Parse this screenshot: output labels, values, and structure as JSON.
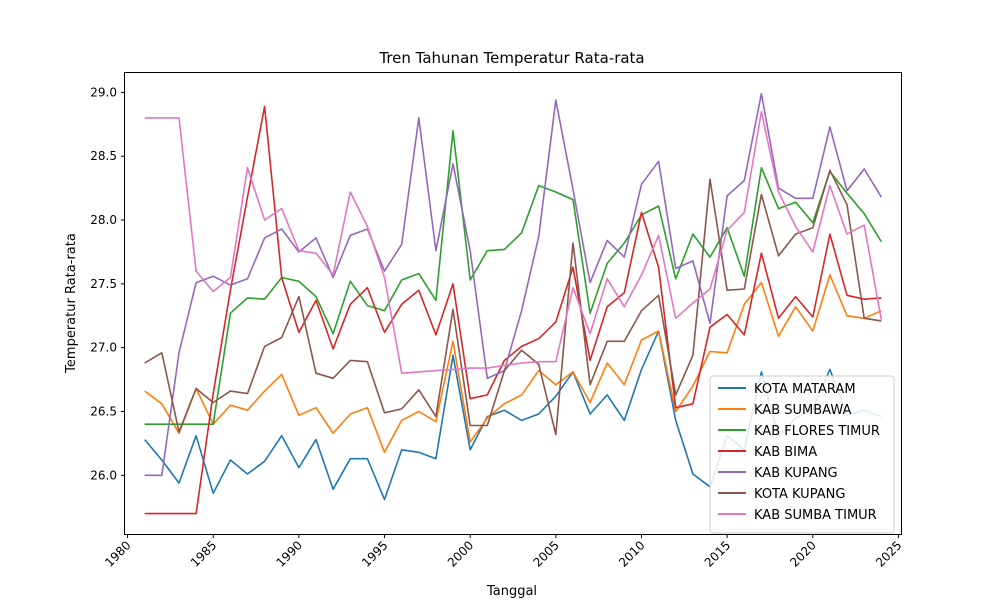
{
  "chart_data": {
    "type": "line",
    "title": "Tren Tahunan Temperatur Rata-rata",
    "xlabel": "Tanggal",
    "ylabel": "Temperatur Rata-rata",
    "xlim": [
      1979.85,
      2025.15
    ],
    "ylim": [
      25.54,
      29.16
    ],
    "xticks": [
      1980,
      1985,
      1990,
      1995,
      2000,
      2005,
      2010,
      2015,
      2020,
      2025
    ],
    "yticks": [
      26.0,
      26.5,
      27.0,
      27.5,
      28.0,
      28.5,
      29.0
    ],
    "grid": false,
    "legend_position": "lower-right",
    "x": [
      1981,
      1982,
      1983,
      1984,
      1985,
      1986,
      1987,
      1988,
      1989,
      1990,
      1991,
      1992,
      1993,
      1994,
      1995,
      1996,
      1997,
      1998,
      1999,
      2000,
      2001,
      2002,
      2003,
      2004,
      2005,
      2006,
      2007,
      2008,
      2009,
      2010,
      2011,
      2012,
      2013,
      2014,
      2015,
      2016,
      2017,
      2018,
      2019,
      2020,
      2021,
      2022,
      2023,
      2024
    ],
    "series": [
      {
        "name": "KOTA MATARAM",
        "color": "#1f77b4",
        "values": [
          26.28,
          26.12,
          25.94,
          26.31,
          25.86,
          26.12,
          26.01,
          26.11,
          26.31,
          26.06,
          26.28,
          25.89,
          26.13,
          26.13,
          25.81,
          26.2,
          26.18,
          26.13,
          26.94,
          26.2,
          26.46,
          26.51,
          26.43,
          26.48,
          26.62,
          26.81,
          26.48,
          26.63,
          26.43,
          26.83,
          27.13,
          26.43,
          26.01,
          25.91,
          26.31,
          26.2,
          26.81,
          26.3,
          26.45,
          26.52,
          26.83,
          26.47,
          26.51,
          26.46
        ]
      },
      {
        "name": "KAB SUMBAWA",
        "color": "#ff7f0e",
        "values": [
          26.66,
          26.56,
          26.33,
          26.68,
          26.4,
          26.55,
          26.51,
          26.66,
          26.79,
          26.47,
          26.53,
          26.33,
          26.48,
          26.53,
          26.18,
          26.43,
          26.5,
          26.42,
          27.05,
          26.26,
          26.45,
          26.56,
          26.63,
          26.82,
          26.71,
          26.81,
          26.57,
          26.88,
          26.71,
          27.06,
          27.13,
          26.5,
          26.7,
          26.97,
          26.96,
          27.34,
          27.51,
          27.09,
          27.32,
          27.13,
          27.57,
          27.25,
          27.23,
          27.29
        ]
      },
      {
        "name": "KAB FLORES TIMUR",
        "color": "#2ca02c",
        "values": [
          26.4,
          26.4,
          26.4,
          26.4,
          26.4,
          27.27,
          27.39,
          27.38,
          27.55,
          27.52,
          27.4,
          27.11,
          27.52,
          27.33,
          27.29,
          27.53,
          27.58,
          27.37,
          28.7,
          27.53,
          27.76,
          27.77,
          27.9,
          28.27,
          28.22,
          28.16,
          27.27,
          27.66,
          27.82,
          28.04,
          28.11,
          27.54,
          27.89,
          27.71,
          27.94,
          27.56,
          28.41,
          28.09,
          28.14,
          27.98,
          28.38,
          28.21,
          28.05,
          27.83
        ]
      },
      {
        "name": "KAB BIMA",
        "color": "#d62728",
        "values": [
          25.7,
          25.7,
          25.7,
          25.7,
          26.64,
          27.45,
          28.18,
          28.89,
          27.55,
          27.12,
          27.37,
          26.99,
          27.34,
          27.47,
          27.12,
          27.34,
          27.45,
          27.1,
          27.5,
          26.6,
          26.63,
          26.9,
          27.01,
          27.07,
          27.2,
          27.63,
          26.9,
          27.32,
          27.43,
          28.06,
          27.63,
          26.53,
          26.56,
          27.16,
          27.26,
          27.1,
          27.74,
          27.23,
          27.4,
          27.24,
          27.89,
          27.41,
          27.38,
          27.39
        ]
      },
      {
        "name": "KAB KUPANG",
        "color": "#9467bd",
        "values": [
          26.0,
          26.0,
          26.96,
          27.51,
          27.56,
          27.49,
          27.54,
          27.86,
          27.93,
          27.75,
          27.86,
          27.55,
          27.88,
          27.93,
          27.6,
          27.81,
          28.8,
          27.76,
          28.44,
          27.76,
          26.76,
          26.82,
          27.29,
          27.87,
          28.94,
          28.24,
          27.51,
          27.84,
          27.71,
          28.28,
          28.46,
          27.62,
          27.68,
          27.19,
          28.19,
          28.31,
          28.99,
          28.25,
          28.17,
          28.17,
          28.73,
          28.23,
          28.4,
          28.18
        ]
      },
      {
        "name": "KOTA KUPANG",
        "color": "#8c564b",
        "values": [
          26.88,
          26.96,
          26.34,
          26.68,
          26.57,
          26.66,
          26.64,
          27.01,
          27.08,
          27.4,
          26.8,
          26.76,
          26.9,
          26.89,
          26.49,
          26.52,
          26.67,
          26.46,
          27.3,
          26.39,
          26.39,
          26.82,
          26.98,
          26.87,
          26.32,
          27.82,
          26.71,
          27.05,
          27.05,
          27.29,
          27.41,
          26.63,
          26.94,
          28.32,
          27.45,
          27.46,
          28.2,
          27.72,
          27.89,
          27.94,
          28.39,
          28.12,
          27.23,
          27.21
        ]
      },
      {
        "name": "KAB SUMBA TIMUR",
        "color": "#e377c2",
        "values": [
          28.8,
          28.8,
          28.8,
          27.6,
          27.44,
          27.55,
          28.41,
          28.0,
          28.09,
          27.76,
          27.74,
          27.57,
          28.22,
          27.95,
          27.55,
          26.8,
          26.81,
          26.82,
          26.83,
          26.84,
          26.84,
          26.86,
          26.88,
          26.89,
          26.89,
          27.47,
          27.11,
          27.54,
          27.32,
          27.57,
          27.88,
          27.23,
          27.35,
          27.46,
          27.92,
          28.06,
          28.85,
          28.22,
          27.95,
          27.75,
          28.27,
          27.89,
          27.96,
          27.22
        ]
      }
    ]
  }
}
